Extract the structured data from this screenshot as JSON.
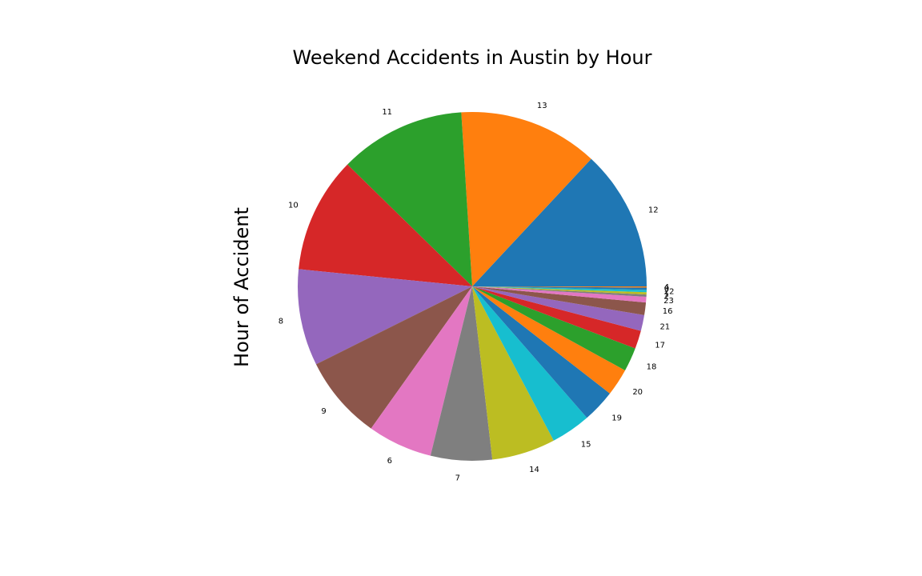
{
  "chart_data": {
    "type": "pie",
    "title": "Weekend Accidents in Austin by Hour",
    "ylabel": "Hour of Accident",
    "start_angle_deg": 0,
    "direction": "counterclockwise",
    "slices": [
      {
        "label": "12",
        "value": 124,
        "color": "#1f77b4"
      },
      {
        "label": "13",
        "value": 123,
        "color": "#ff7f0e"
      },
      {
        "label": "11",
        "value": 111,
        "color": "#2ca02c"
      },
      {
        "label": "10",
        "value": 102,
        "color": "#d62728"
      },
      {
        "label": "8",
        "value": 85,
        "color": "#9467bd"
      },
      {
        "label": "9",
        "value": 74,
        "color": "#8c564b"
      },
      {
        "label": "6",
        "value": 57,
        "color": "#e377c2"
      },
      {
        "label": "7",
        "value": 54,
        "color": "#7f7f7f"
      },
      {
        "label": "14",
        "value": 56,
        "color": "#bcbd22"
      },
      {
        "label": "15",
        "value": 35,
        "color": "#17becf"
      },
      {
        "label": "19",
        "value": 29,
        "color": "#1f77b4"
      },
      {
        "label": "20",
        "value": 24,
        "color": "#ff7f0e"
      },
      {
        "label": "18",
        "value": 21,
        "color": "#2ca02c"
      },
      {
        "label": "17",
        "value": 16,
        "color": "#d62728"
      },
      {
        "label": "21",
        "value": 14,
        "color": "#9467bd"
      },
      {
        "label": "16",
        "value": 11,
        "color": "#8c564b"
      },
      {
        "label": "23",
        "value": 5,
        "color": "#e377c2"
      },
      {
        "label": "2",
        "value": 2,
        "color": "#7f7f7f"
      },
      {
        "label": "1",
        "value": 2,
        "color": "#bcbd22"
      },
      {
        "label": "22",
        "value": 2,
        "color": "#17becf"
      },
      {
        "label": "0",
        "value": 2,
        "color": "#1f77b4"
      },
      {
        "label": "4",
        "value": 1,
        "color": "#ff7f0e"
      }
    ]
  }
}
